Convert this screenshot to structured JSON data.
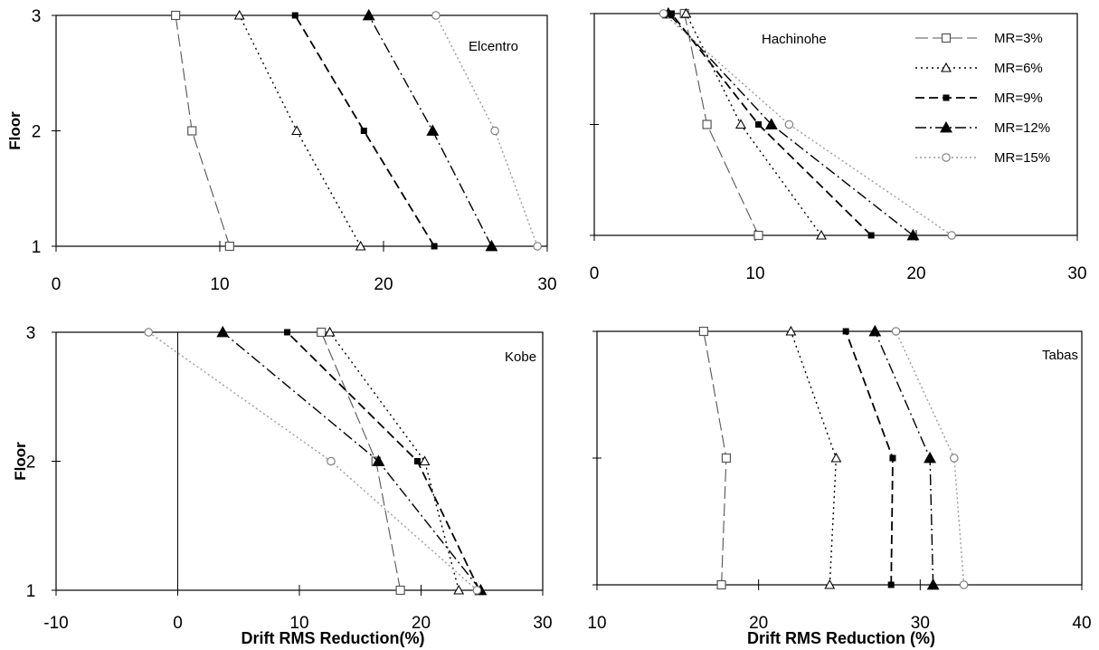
{
  "chart_data": [
    {
      "type": "line",
      "title": "Elcentro",
      "xlabel": "",
      "ylabel": "Floor",
      "xlim": [
        0,
        30
      ],
      "ylim": [
        1,
        3
      ],
      "xticks": [
        "0",
        "10",
        "20",
        "30"
      ],
      "yticks": [
        "1",
        "2",
        "3"
      ],
      "series": [
        {
          "name": "MR=3%",
          "x": [
            10.6,
            8.3,
            7.3
          ],
          "y": [
            1,
            2,
            3
          ]
        },
        {
          "name": "MR=6%",
          "x": [
            18.6,
            14.7,
            11.2
          ],
          "y": [
            1,
            2,
            3
          ]
        },
        {
          "name": "MR=9%",
          "x": [
            23.1,
            18.8,
            14.6
          ],
          "y": [
            1,
            2,
            3
          ]
        },
        {
          "name": "MR=12%",
          "x": [
            26.6,
            23.0,
            19.1
          ],
          "y": [
            1,
            2,
            3
          ]
        },
        {
          "name": "MR=15%",
          "x": [
            29.4,
            26.8,
            23.2
          ],
          "y": [
            1,
            2,
            3
          ]
        }
      ]
    },
    {
      "type": "line",
      "title": "Hachinohe",
      "xlabel": "",
      "ylabel": "",
      "xlim": [
        0,
        30
      ],
      "ylim": [
        1,
        3
      ],
      "xticks": [
        "0",
        "10",
        "20",
        "30"
      ],
      "yticks": [
        "",
        "",
        ""
      ],
      "series": [
        {
          "name": "MR=3%",
          "x": [
            10.2,
            7.0,
            5.6
          ],
          "y": [
            1,
            2,
            3
          ]
        },
        {
          "name": "MR=6%",
          "x": [
            14.1,
            9.1,
            5.7
          ],
          "y": [
            1,
            2,
            3
          ]
        },
        {
          "name": "MR=9%",
          "x": [
            17.2,
            10.2,
            4.8
          ],
          "y": [
            1,
            2,
            3
          ]
        },
        {
          "name": "MR=12%",
          "x": [
            19.8,
            11.0,
            4.6
          ],
          "y": [
            1,
            2,
            3
          ]
        },
        {
          "name": "MR=15%",
          "x": [
            22.2,
            12.1,
            4.3
          ],
          "y": [
            1,
            2,
            3
          ]
        }
      ]
    },
    {
      "type": "line",
      "title": "Kobe",
      "xlabel": "Drift RMS Reduction(%)",
      "ylabel": "Floor",
      "xlim": [
        -10,
        30
      ],
      "ylim": [
        1,
        3
      ],
      "xticks": [
        "-10",
        "0",
        "10",
        "20",
        "30"
      ],
      "yticks": [
        "1",
        "2",
        "3"
      ],
      "series": [
        {
          "name": "MR=3%",
          "x": [
            18.3,
            16.3,
            11.8
          ],
          "y": [
            1,
            2,
            3
          ]
        },
        {
          "name": "MR=6%",
          "x": [
            23.1,
            20.3,
            12.5
          ],
          "y": [
            1,
            2,
            3
          ]
        },
        {
          "name": "MR=9%",
          "x": [
            24.8,
            19.7,
            9.0
          ],
          "y": [
            1,
            2,
            3
          ]
        },
        {
          "name": "MR=12%",
          "x": [
            24.9,
            16.5,
            3.7
          ],
          "y": [
            1,
            2,
            3
          ]
        },
        {
          "name": "MR=15%",
          "x": [
            24.6,
            12.6,
            -2.4
          ],
          "y": [
            1,
            2,
            3
          ]
        }
      ]
    },
    {
      "type": "line",
      "title": "Tabas",
      "xlabel": "Drift RMS Reduction (%)",
      "ylabel": "",
      "xlim": [
        10,
        40
      ],
      "ylim": [
        1,
        3
      ],
      "xticks": [
        "10",
        "20",
        "30",
        "40"
      ],
      "yticks": [
        "",
        "",
        ""
      ],
      "series": [
        {
          "name": "MR=3%",
          "x": [
            17.7,
            18.0,
            16.6
          ],
          "y": [
            1,
            2,
            3
          ]
        },
        {
          "name": "MR=6%",
          "x": [
            24.4,
            24.8,
            22.0
          ],
          "y": [
            1,
            2,
            3
          ]
        },
        {
          "name": "MR=9%",
          "x": [
            28.2,
            28.3,
            25.4
          ],
          "y": [
            1,
            2,
            3
          ]
        },
        {
          "name": "MR=12%",
          "x": [
            30.8,
            30.6,
            27.2
          ],
          "y": [
            1,
            2,
            3
          ]
        },
        {
          "name": "MR=15%",
          "x": [
            32.7,
            32.1,
            28.5
          ],
          "y": [
            1,
            2,
            3
          ]
        }
      ]
    }
  ],
  "legend": [
    {
      "label": "MR=3%",
      "marker": "open-square",
      "dash": "long-dash",
      "color": "#666666"
    },
    {
      "label": "MR=6%",
      "marker": "open-triangle",
      "dash": "dotted",
      "color": "#000000"
    },
    {
      "label": "MR=9%",
      "marker": "filled-square",
      "dash": "dashed",
      "color": "#000000"
    },
    {
      "label": "MR=12%",
      "marker": "filled-triangle",
      "dash": "dash-dot",
      "color": "#000000"
    },
    {
      "label": "MR=15%",
      "marker": "open-circle",
      "dash": "dotted",
      "color": "#9a9a9a"
    }
  ]
}
